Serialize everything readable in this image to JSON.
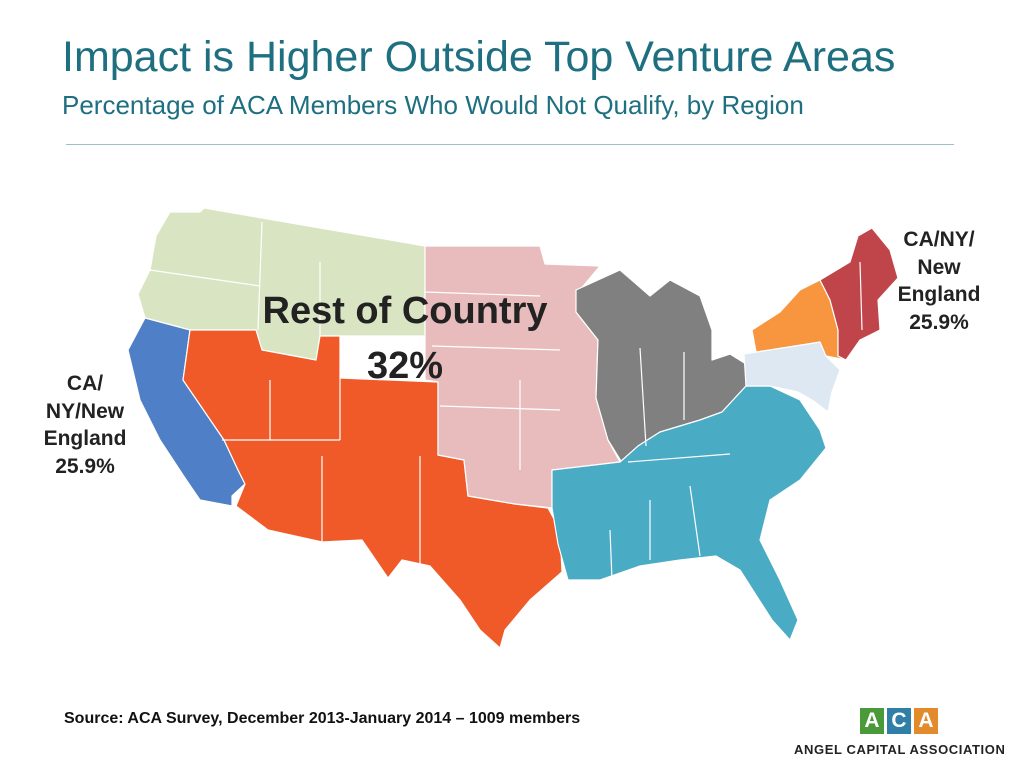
{
  "header": {
    "title": "Impact is Higher Outside Top Venture Areas",
    "subtitle": "Percentage of ACA Members Who Would Not Qualify, by Region"
  },
  "map": {
    "regions": [
      {
        "key": "northwest",
        "color": "#d9e5c2"
      },
      {
        "key": "southwest",
        "color": "#f05a28"
      },
      {
        "key": "plains",
        "color": "#e8bcbc"
      },
      {
        "key": "great-lakes",
        "color": "#808080"
      },
      {
        "key": "southeast",
        "color": "#4aabc4"
      },
      {
        "key": "california",
        "color": "#4f7fc6"
      },
      {
        "key": "new-york",
        "color": "#f7963f"
      },
      {
        "key": "new-england",
        "color": "#c0454a"
      },
      {
        "key": "mid-atlantic",
        "color": "#dde8f2"
      }
    ],
    "labels": {
      "rest_of_country": "Rest of Country",
      "rest_of_country_value": "32%",
      "west_line1": "CA/",
      "west_line2": "NY/New",
      "west_line3": "England",
      "west_value": "25.9%",
      "east_line1": "CA/NY/",
      "east_line2": "New",
      "east_line3": "England",
      "east_value": "25.9%"
    }
  },
  "footer": {
    "source": "Source:  ACA Survey, December 2013-January 2014 – 1009 members"
  },
  "logo": {
    "letters": [
      "A",
      "C",
      "A"
    ],
    "letter_colors": [
      "#4a9a3a",
      "#2f7fa8",
      "#e38a2c"
    ],
    "name": "ANGEL CAPITAL ASSOCIATION"
  }
}
